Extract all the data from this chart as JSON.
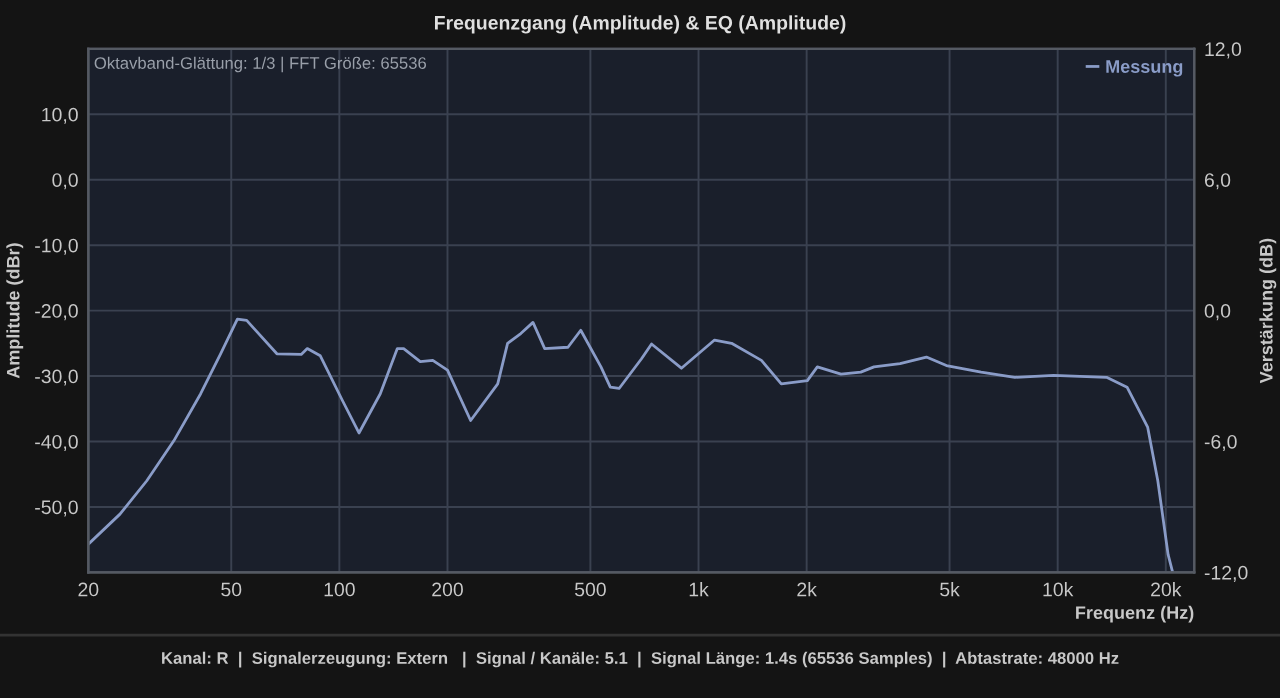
{
  "chart_data": {
    "type": "line",
    "title": "Frequenzgang (Amplitude) & EQ (Amplitude)",
    "xlabel": "Frequenz (Hz)",
    "ylabel": "Amplitude (dBr)",
    "y2label": "Verstärkung (dB)",
    "log": "x",
    "grid": true,
    "legend": "top right",
    "xlim": [
      20,
      24000
    ],
    "xticks": [
      20,
      50,
      100,
      200,
      500,
      {
        "value": 1000,
        "label": "1k"
      },
      {
        "value": 2000,
        "label": "2k"
      },
      {
        "value": 5000,
        "label": "5k"
      },
      {
        "value": 10000,
        "label": "10k"
      },
      {
        "value": 20000,
        "label": "20k"
      }
    ],
    "ylim": [
      -60,
      20
    ],
    "yticks": [
      {
        "value": -60,
        "label": null
      },
      {
        "value": -50,
        "label": "-50,0"
      },
      {
        "value": -40,
        "label": "-40,0"
      },
      {
        "value": -30,
        "label": "-30,0"
      },
      {
        "value": -20,
        "label": "-20,0"
      },
      {
        "value": -10,
        "label": "-10,0"
      },
      {
        "value": 0,
        "label": "0,0"
      },
      {
        "value": 10,
        "label": "10,0"
      },
      {
        "value": 20,
        "label": null
      }
    ],
    "y2lim": [
      -12,
      12
    ],
    "y2ticks": [
      {
        "value": -12,
        "label": "-12,0"
      },
      {
        "value": -6,
        "label": "-6,0"
      },
      {
        "value": 0,
        "label": "0,0"
      },
      {
        "value": 6,
        "label": "6,0"
      },
      {
        "value": 12,
        "label": "12,0"
      }
    ],
    "annotations": [
      "Oktavband-Glättung: 1/3 | FFT Größe: 65536",
      "Kanal: R  |  Signalerzeugung: Extern   |  Signal / Kanäle: 5.1  |  Signal Länge: 1.4s (65536 Samples)  |  Abtastrate: 48000 Hz"
    ],
    "series": [
      {
        "name": "Messung",
        "color": "#8a9cc8",
        "x": [
          20,
          24.5,
          29.1,
          34.6,
          41.1,
          46.7,
          52,
          55.2,
          67,
          78.3,
          81.4,
          88.5,
          101.9,
          113.4,
          130,
          145,
          151,
          168,
          182,
          200,
          232,
          276,
          294,
          320,
          346,
          373,
          433,
          470,
          535,
          568,
          601,
          693,
          740,
          896,
          1108,
          1236,
          1497,
          1700,
          2009,
          2142,
          2493,
          2830,
          3080,
          3640,
          4310,
          4900,
          6120,
          7600,
          9740,
          13680,
          15600,
          17800,
          19000,
          20300,
          20900
        ],
        "values": [
          -55.7,
          -51.1,
          -46,
          -39.9,
          -32.7,
          -26.6,
          -21.3,
          -21.5,
          -26.6,
          -26.7,
          -25.8,
          -26.9,
          -33.7,
          -38.7,
          -32.7,
          -25.8,
          -25.8,
          -27.8,
          -27.6,
          -29.1,
          -36.8,
          -31.2,
          -25,
          -23.5,
          -21.8,
          -25.8,
          -25.6,
          -23,
          -28.6,
          -31.7,
          -31.9,
          -27.4,
          -25.1,
          -28.8,
          -24.5,
          -25,
          -27.6,
          -31.2,
          -30.7,
          -28.6,
          -29.7,
          -29.4,
          -28.6,
          -28.1,
          -27.1,
          -28.4,
          -29.4,
          -30.2,
          -29.9,
          -30.2,
          -31.7,
          -37.8,
          -46,
          -57.3,
          -60
        ]
      }
    ]
  }
}
